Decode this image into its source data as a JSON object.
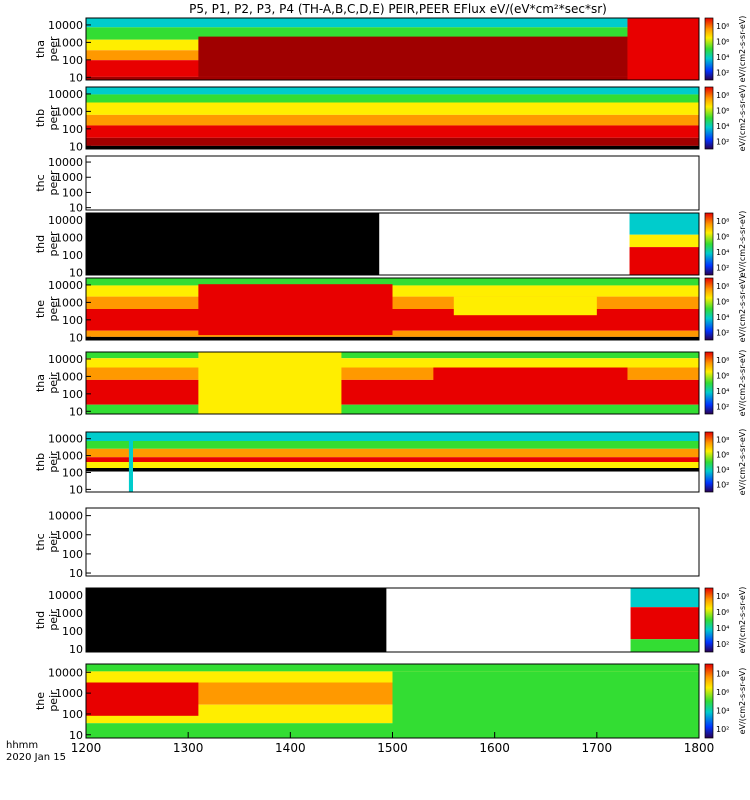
{
  "title": "P5, P1, P2, P3, P4 (TH-A,B,C,D,E) PEIR,PEER EFlux eV/(eV*cm²*sec*sr)",
  "time_label_line1": "hhmm",
  "time_label_line2": "2020 Jan 15",
  "chart_data": {
    "type": "heatmap",
    "x_ticks": [
      "1200",
      "1300",
      "1400",
      "1500",
      "1600",
      "1700",
      "1800"
    ],
    "x_range": [
      1200,
      1800
    ],
    "y_ticks": [
      "10",
      "100",
      "1000",
      "10000"
    ],
    "y_scale": "log",
    "colorbar_label": "eV/(cm2-s-sr-eV)",
    "colorbar_ticks": [
      "10²",
      "10⁴",
      "10⁶",
      "10⁸"
    ],
    "colors": {
      "saturated": "#a00000",
      "red": "#e80000",
      "orange": "#ff9900",
      "yellow": "#ffee00",
      "green": "#33dd33",
      "cyan": "#00cccc",
      "blue": "#0033ff",
      "black": "#000000"
    },
    "panels": [
      {
        "line1": "tha",
        "line2": "peer",
        "colorbar": true
      },
      {
        "line1": "thb",
        "line2": "peer",
        "colorbar": true
      },
      {
        "line1": "thc",
        "line2": "peer",
        "colorbar": false
      },
      {
        "line1": "thd",
        "line2": "peer",
        "colorbar": true
      },
      {
        "line1": "the",
        "line2": "peer",
        "colorbar": true
      },
      {
        "line1": "tha",
        "line2": "peir",
        "colorbar": true
      },
      {
        "line1": "thb",
        "line2": "peir",
        "colorbar": true
      },
      {
        "line1": "thc",
        "line2": "peir",
        "colorbar": false
      },
      {
        "line1": "thd",
        "line2": "peir",
        "colorbar": true
      },
      {
        "line1": "the",
        "line2": "peir",
        "colorbar": true
      }
    ]
  }
}
